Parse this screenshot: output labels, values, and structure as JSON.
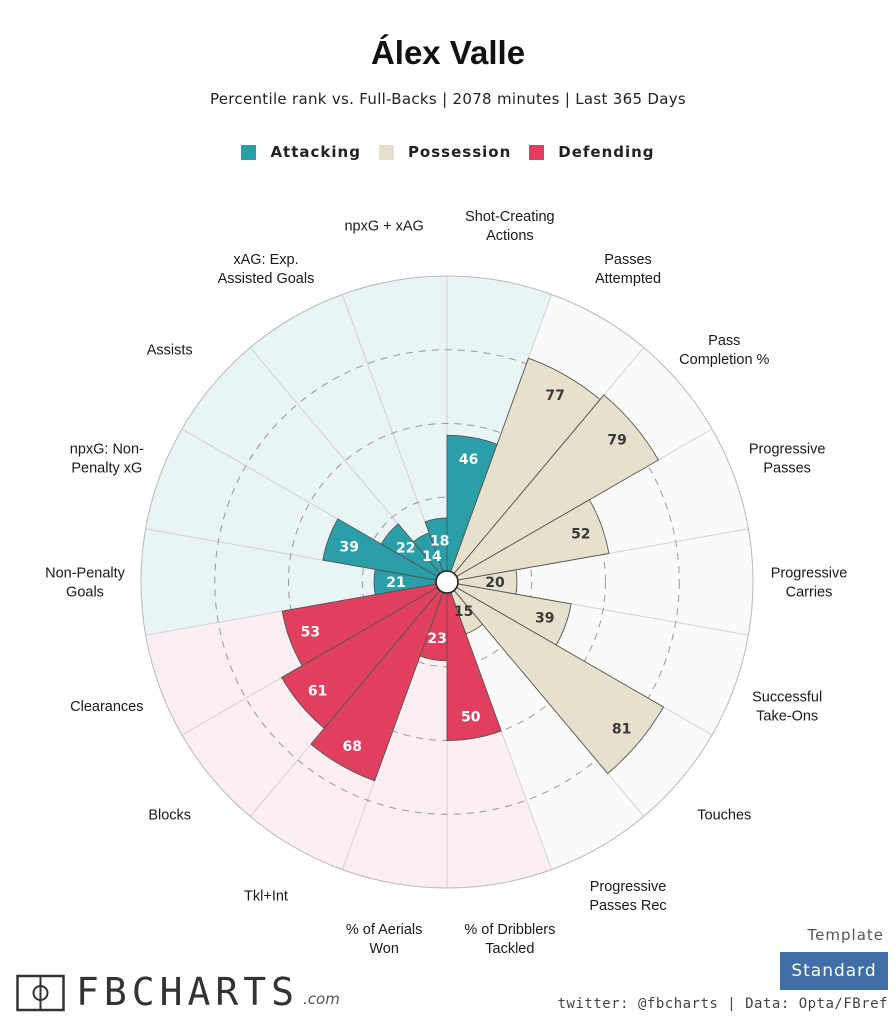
{
  "title": "Álex Valle",
  "subtitle": "Percentile rank vs. Full-Backs | 2078 minutes | Last 365 Days",
  "legend": [
    {
      "label": "Attacking",
      "color": "#2a9fa8"
    },
    {
      "label": "Possession",
      "color": "#e6e0cc"
    },
    {
      "label": "Defending",
      "color": "#e0405e"
    }
  ],
  "chart_data": {
    "type": "polar-bar",
    "title": "Álex Valle",
    "scale": [
      0,
      100
    ],
    "gridlines": [
      25,
      50,
      75
    ],
    "categories": [
      {
        "label": "Shot-Creating\nActions",
        "value": 46,
        "group": "Attacking"
      },
      {
        "label": "Passes\nAttempted",
        "value": 77,
        "group": "Possession"
      },
      {
        "label": "Pass\nCompletion %",
        "value": 79,
        "group": "Possession"
      },
      {
        "label": "Progressive\nPasses",
        "value": 52,
        "group": "Possession"
      },
      {
        "label": "Progressive\nCarries",
        "value": 20,
        "group": "Possession"
      },
      {
        "label": "Successful\nTake-Ons",
        "value": 39,
        "group": "Possession"
      },
      {
        "label": "Touches",
        "value": 81,
        "group": "Possession"
      },
      {
        "label": "Progressive\nPasses Rec",
        "value": 15,
        "group": "Possession"
      },
      {
        "label": "% of Dribblers\nTackled",
        "value": 50,
        "group": "Defending"
      },
      {
        "label": "% of Aerials\nWon",
        "value": 23,
        "group": "Defending"
      },
      {
        "label": "Tkl+Int",
        "value": 68,
        "group": "Defending"
      },
      {
        "label": "Blocks",
        "value": 61,
        "group": "Defending"
      },
      {
        "label": "Clearances",
        "value": 53,
        "group": "Defending"
      },
      {
        "label": "Non-Penalty\nGoals",
        "value": 21,
        "group": "Attacking"
      },
      {
        "label": "npxG: Non-\nPenalty xG",
        "value": 39,
        "group": "Attacking"
      },
      {
        "label": "Assists",
        "value": 22,
        "group": "Attacking"
      },
      {
        "label": "xAG: Exp.\nAssisted Goals",
        "value": 14,
        "group": "Attacking"
      },
      {
        "label": "npxG + xAG",
        "value": 18,
        "group": "Attacking"
      }
    ],
    "group_colors": {
      "Attacking": {
        "bar": "#2a9fa8",
        "bg": "#e8f4f5"
      },
      "Possession": {
        "bar": "#e6e0cc",
        "bg": "#fafaf8"
      },
      "Defending": {
        "bar": "#e0405e",
        "bg": "#fceef1"
      }
    }
  },
  "footer": {
    "logo": "FBCHARTS",
    "logo_suffix": ".com",
    "template_label": "Template",
    "template_value": "Standard",
    "credits": "twitter: @fbcharts | Data: Opta/FBref"
  }
}
